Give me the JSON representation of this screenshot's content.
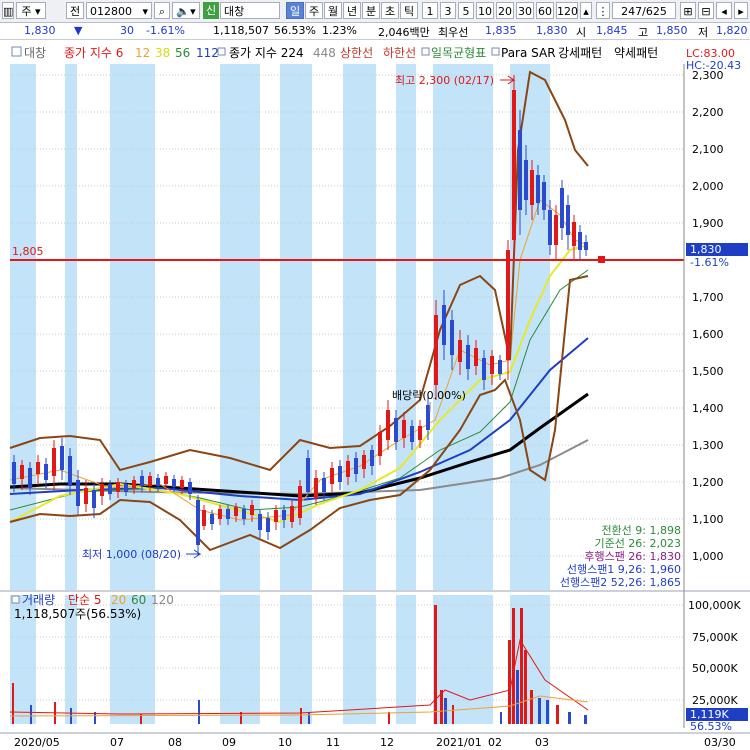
{
  "toolbar": {
    "type_label": "주",
    "mode_label": "전",
    "code": "012800",
    "badge": "신",
    "stock_name": "대창",
    "periods": [
      "일",
      "주",
      "월",
      "년",
      "분",
      "초",
      "틱"
    ],
    "active_period": "일",
    "intervals": [
      "1",
      "3",
      "5",
      "10",
      "20",
      "30",
      "60",
      "120"
    ],
    "page_count": "247/625"
  },
  "quote": {
    "price": "1,830",
    "change": "30",
    "change_pct": "-1.61%",
    "volume": "1,118,507",
    "volume_ratio": "56.53%",
    "turnover_ratio": "1.23%",
    "trade_value": "2,046백만",
    "priority_label": "최우선",
    "best_ask": "1,835",
    "best_bid": "1,830",
    "open_label": "시",
    "open": "1,845",
    "high_label": "고",
    "high": "1,850",
    "low_label": "저",
    "low": "1,820"
  },
  "chart": {
    "legend": {
      "name": "대창",
      "ma_label": "종가 지수 6",
      "ma_periods": [
        "12",
        "38",
        "56",
        "112"
      ],
      "ma2_label": "종가 지수 224",
      "ma2_period": "448",
      "upper_band": "상한선",
      "lower_band": "하한선",
      "ichimoku": "일목균형표",
      "psar": "Para SAR",
      "strong": "강세패턴",
      "weak": "약세패턴"
    },
    "lc": "LC:83.00",
    "hc": "HC:-20.43",
    "high_marker": "최고 2,300 (02/17)",
    "low_marker": "최저 1,000 (08/20)",
    "dividend": "배당락(0.00%)",
    "ref_line": "1,805",
    "current_price": "1,830",
    "current_pct": "-1.61%",
    "price_ticks": [
      "2,300",
      "2,200",
      "2,100",
      "2,000",
      "1,900",
      "1,800",
      "1,700",
      "1,600",
      "1,500",
      "1,400",
      "1,300",
      "1,200",
      "1,100",
      "1,000"
    ],
    "ichimoku_values": [
      "전환선 9: 1,898",
      "기준선 26: 2,023",
      "후행스팬 26: 1,830",
      "선행스팬1 9,26: 1,960",
      "선행스팬2 52,26: 1,865"
    ]
  },
  "volume": {
    "label": "거래량",
    "ma_label": "단순 5",
    "ma_periods": [
      "20",
      "60",
      "120"
    ],
    "summary": "1,118,507주(56.53%)",
    "ticks": [
      "100,000K",
      "75,000K",
      "50,000K",
      "25,000K"
    ],
    "current": "1,119K",
    "current_pct": "56.53%"
  },
  "xaxis": {
    "labels": [
      "2020/05",
      "07",
      "08",
      "09",
      "10",
      "11",
      "12",
      "2021/01",
      "02",
      "03"
    ],
    "end_label": "03/30"
  },
  "chart_data": {
    "type": "line",
    "x": [
      "2020/05",
      "07",
      "08",
      "09",
      "10",
      "11",
      "12",
      "2021/01",
      "02",
      "03"
    ],
    "series": [],
    "ylim": [
      1000,
      2300
    ],
    "highlights": [
      {
        "label": "최고",
        "value": 2300,
        "date": "02/17"
      },
      {
        "label": "최저",
        "value": 1000,
        "date": "08/20"
      }
    ]
  }
}
